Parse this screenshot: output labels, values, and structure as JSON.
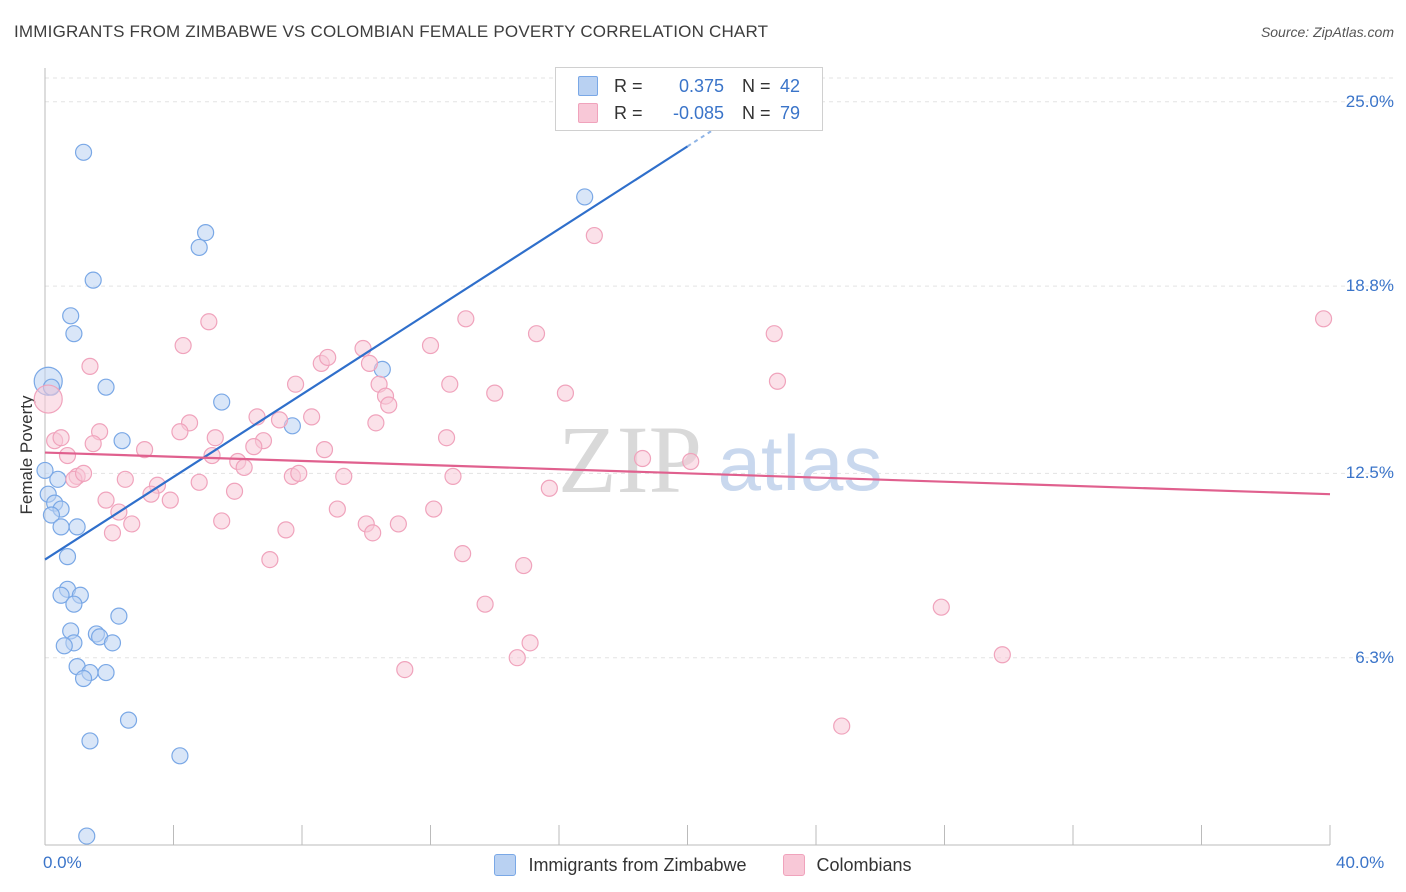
{
  "header": {
    "title": "IMMIGRANTS FROM ZIMBABWE VS COLOMBIAN FEMALE POVERTY CORRELATION CHART",
    "source": "Source: ZipAtlas.com"
  },
  "legend": {
    "rows": [
      {
        "r_label": "R =",
        "r_value": "0.375",
        "n_label": "N =",
        "n_value": "42"
      },
      {
        "r_label": "R =",
        "r_value": "-0.085",
        "n_label": "N =",
        "n_value": "79"
      }
    ]
  },
  "watermark": {
    "zip": "ZIP",
    "atlas": "atlas"
  },
  "chart_data": {
    "type": "scatter",
    "title": "IMMIGRANTS FROM ZIMBABWE VS COLOMBIAN FEMALE POVERTY CORRELATION CHART",
    "xlabel": "",
    "ylabel": "Female Poverty",
    "xlim": [
      0,
      40
    ],
    "ylim": [
      0,
      25.8
    ],
    "x_tick_labels": [
      "0.0%",
      "40.0%"
    ],
    "y_ticks": [
      6.3,
      12.5,
      18.8,
      25.0
    ],
    "y_tick_labels": [
      "6.3%",
      "12.5%",
      "18.8%",
      "25.0%"
    ],
    "grid": true,
    "series": [
      {
        "name": "Immigrants from Zimbabwe",
        "color": "#7aa8e6",
        "fill": "#b9d1f2",
        "trend": {
          "x": [
            0,
            20.0
          ],
          "y": [
            9.6,
            23.5
          ],
          "line_color": "#2f6fcb"
        },
        "points": [
          [
            1.2,
            23.3
          ],
          [
            4.8,
            20.1
          ],
          [
            5.0,
            20.6
          ],
          [
            1.5,
            19.0
          ],
          [
            0.8,
            17.8
          ],
          [
            0.9,
            17.2
          ],
          [
            0.1,
            15.6
          ],
          [
            0.2,
            15.4
          ],
          [
            1.9,
            15.4
          ],
          [
            5.5,
            14.9
          ],
          [
            7.7,
            14.1
          ],
          [
            10.5,
            16.0
          ],
          [
            16.8,
            21.8
          ],
          [
            2.4,
            13.6
          ],
          [
            0.4,
            12.3
          ],
          [
            0.1,
            11.8
          ],
          [
            0.3,
            11.5
          ],
          [
            0.5,
            11.3
          ],
          [
            0.2,
            11.1
          ],
          [
            0.5,
            10.7
          ],
          [
            1.0,
            10.7
          ],
          [
            0.7,
            9.7
          ],
          [
            0.7,
            8.6
          ],
          [
            0.5,
            8.4
          ],
          [
            1.1,
            8.4
          ],
          [
            0.9,
            8.1
          ],
          [
            2.3,
            7.7
          ],
          [
            1.6,
            7.1
          ],
          [
            1.7,
            7.0
          ],
          [
            0.8,
            7.2
          ],
          [
            0.9,
            6.8
          ],
          [
            0.6,
            6.7
          ],
          [
            2.1,
            6.8
          ],
          [
            1.0,
            6.0
          ],
          [
            1.4,
            5.8
          ],
          [
            1.9,
            5.8
          ],
          [
            1.2,
            5.6
          ],
          [
            2.6,
            4.2
          ],
          [
            1.4,
            3.5
          ],
          [
            4.2,
            3.0
          ],
          [
            1.3,
            0.3
          ],
          [
            0.0,
            12.6
          ]
        ]
      },
      {
        "name": "Colombians",
        "color": "#f0a3bc",
        "fill": "#f8c8d7",
        "trend": {
          "x": [
            0,
            40
          ],
          "y": [
            13.2,
            11.8
          ],
          "line_color": "#e0608e"
        },
        "points": [
          [
            17.1,
            20.5
          ],
          [
            5.1,
            17.6
          ],
          [
            13.1,
            17.7
          ],
          [
            15.3,
            17.2
          ],
          [
            22.7,
            17.2
          ],
          [
            39.8,
            17.7
          ],
          [
            4.3,
            16.8
          ],
          [
            9.9,
            16.7
          ],
          [
            8.6,
            16.2
          ],
          [
            8.8,
            16.4
          ],
          [
            10.1,
            16.2
          ],
          [
            12.0,
            16.8
          ],
          [
            1.4,
            16.1
          ],
          [
            7.8,
            15.5
          ],
          [
            10.4,
            15.5
          ],
          [
            12.6,
            15.5
          ],
          [
            14.0,
            15.2
          ],
          [
            16.2,
            15.2
          ],
          [
            22.8,
            15.6
          ],
          [
            10.6,
            15.1
          ],
          [
            10.7,
            14.8
          ],
          [
            6.6,
            14.4
          ],
          [
            7.3,
            14.3
          ],
          [
            8.3,
            14.4
          ],
          [
            10.3,
            14.2
          ],
          [
            4.5,
            14.2
          ],
          [
            1.7,
            13.9
          ],
          [
            4.2,
            13.9
          ],
          [
            5.3,
            13.7
          ],
          [
            6.8,
            13.6
          ],
          [
            12.5,
            13.7
          ],
          [
            0.3,
            13.6
          ],
          [
            0.5,
            13.7
          ],
          [
            1.5,
            13.5
          ],
          [
            3.1,
            13.3
          ],
          [
            6.5,
            13.4
          ],
          [
            0.7,
            13.1
          ],
          [
            5.2,
            13.1
          ],
          [
            8.7,
            13.3
          ],
          [
            6.0,
            12.9
          ],
          [
            6.2,
            12.7
          ],
          [
            1.0,
            12.4
          ],
          [
            0.9,
            12.3
          ],
          [
            2.5,
            12.3
          ],
          [
            3.5,
            12.1
          ],
          [
            4.8,
            12.2
          ],
          [
            7.7,
            12.4
          ],
          [
            7.9,
            12.5
          ],
          [
            9.3,
            12.4
          ],
          [
            12.7,
            12.4
          ],
          [
            15.7,
            12.0
          ],
          [
            5.9,
            11.9
          ],
          [
            3.3,
            11.8
          ],
          [
            1.9,
            11.6
          ],
          [
            3.9,
            11.6
          ],
          [
            2.3,
            11.2
          ],
          [
            9.1,
            11.3
          ],
          [
            12.1,
            11.3
          ],
          [
            5.5,
            10.9
          ],
          [
            2.7,
            10.8
          ],
          [
            11.0,
            10.8
          ],
          [
            10.0,
            10.8
          ],
          [
            7.5,
            10.6
          ],
          [
            2.1,
            10.5
          ],
          [
            10.2,
            10.5
          ],
          [
            7.0,
            9.6
          ],
          [
            13.0,
            9.8
          ],
          [
            14.9,
            9.4
          ],
          [
            13.7,
            8.1
          ],
          [
            27.9,
            8.0
          ],
          [
            15.1,
            6.8
          ],
          [
            14.7,
            6.3
          ],
          [
            29.8,
            6.4
          ],
          [
            11.2,
            5.9
          ],
          [
            24.8,
            4.0
          ],
          [
            0.1,
            15.0
          ],
          [
            1.2,
            12.5
          ],
          [
            18.6,
            13.0
          ],
          [
            20.1,
            12.9
          ]
        ]
      }
    ]
  },
  "bottom_legend": [
    {
      "label": "Immigrants from Zimbabwe"
    },
    {
      "label": "Colombians"
    }
  ]
}
